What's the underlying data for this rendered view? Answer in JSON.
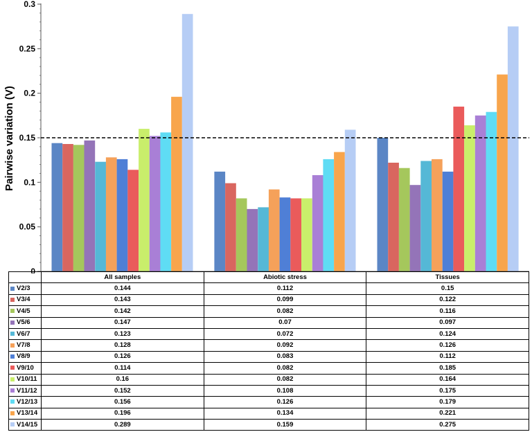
{
  "chart_data": {
    "type": "bar",
    "ylabel": "Pairwise variation (V)",
    "ylim": [
      0,
      0.3
    ],
    "yticks": [
      "0",
      "0.05",
      "0.1",
      "0.15",
      "0.2",
      "0.25",
      "0.3"
    ],
    "threshold": 0.15,
    "categories": [
      "All samples",
      "Abiotic stress",
      "Tissues"
    ],
    "series": [
      {
        "name": "V2/3",
        "color": "#5b86c5",
        "values": [
          "0.144",
          "0.112",
          "0.15"
        ]
      },
      {
        "name": "V3/4",
        "color": "#d9665f",
        "values": [
          "0.143",
          "0.099",
          "0.122"
        ]
      },
      {
        "name": "V4/5",
        "color": "#a5c75c",
        "values": [
          "0.142",
          "0.082",
          "0.116"
        ]
      },
      {
        "name": "V5/6",
        "color": "#9474b8",
        "values": [
          "0.147",
          "0.07",
          "0.097"
        ]
      },
      {
        "name": "V6/7",
        "color": "#55b8d6",
        "values": [
          "0.123",
          "0.072",
          "0.124"
        ]
      },
      {
        "name": "V7/8",
        "color": "#f5a15a",
        "values": [
          "0.128",
          "0.092",
          "0.126"
        ]
      },
      {
        "name": "V8/9",
        "color": "#4f7fd6",
        "values": [
          "0.126",
          "0.083",
          "0.112"
        ]
      },
      {
        "name": "V9/10",
        "color": "#ea5b5b",
        "values": [
          "0.114",
          "0.082",
          "0.185"
        ]
      },
      {
        "name": "V10/11",
        "color": "#c9ee6b",
        "values": [
          "0.16",
          "0.082",
          "0.164"
        ]
      },
      {
        "name": "V11/12",
        "color": "#a97fd6",
        "values": [
          "0.152",
          "0.108",
          "0.175"
        ]
      },
      {
        "name": "V12/13",
        "color": "#5fdcf4",
        "values": [
          "0.156",
          "0.126",
          "0.179"
        ]
      },
      {
        "name": "V13/14",
        "color": "#f8a54c",
        "values": [
          "0.196",
          "0.134",
          "0.221"
        ]
      },
      {
        "name": "V14/15",
        "color": "#b6cdf5",
        "values": [
          "0.289",
          "0.159",
          "0.275"
        ]
      }
    ]
  }
}
